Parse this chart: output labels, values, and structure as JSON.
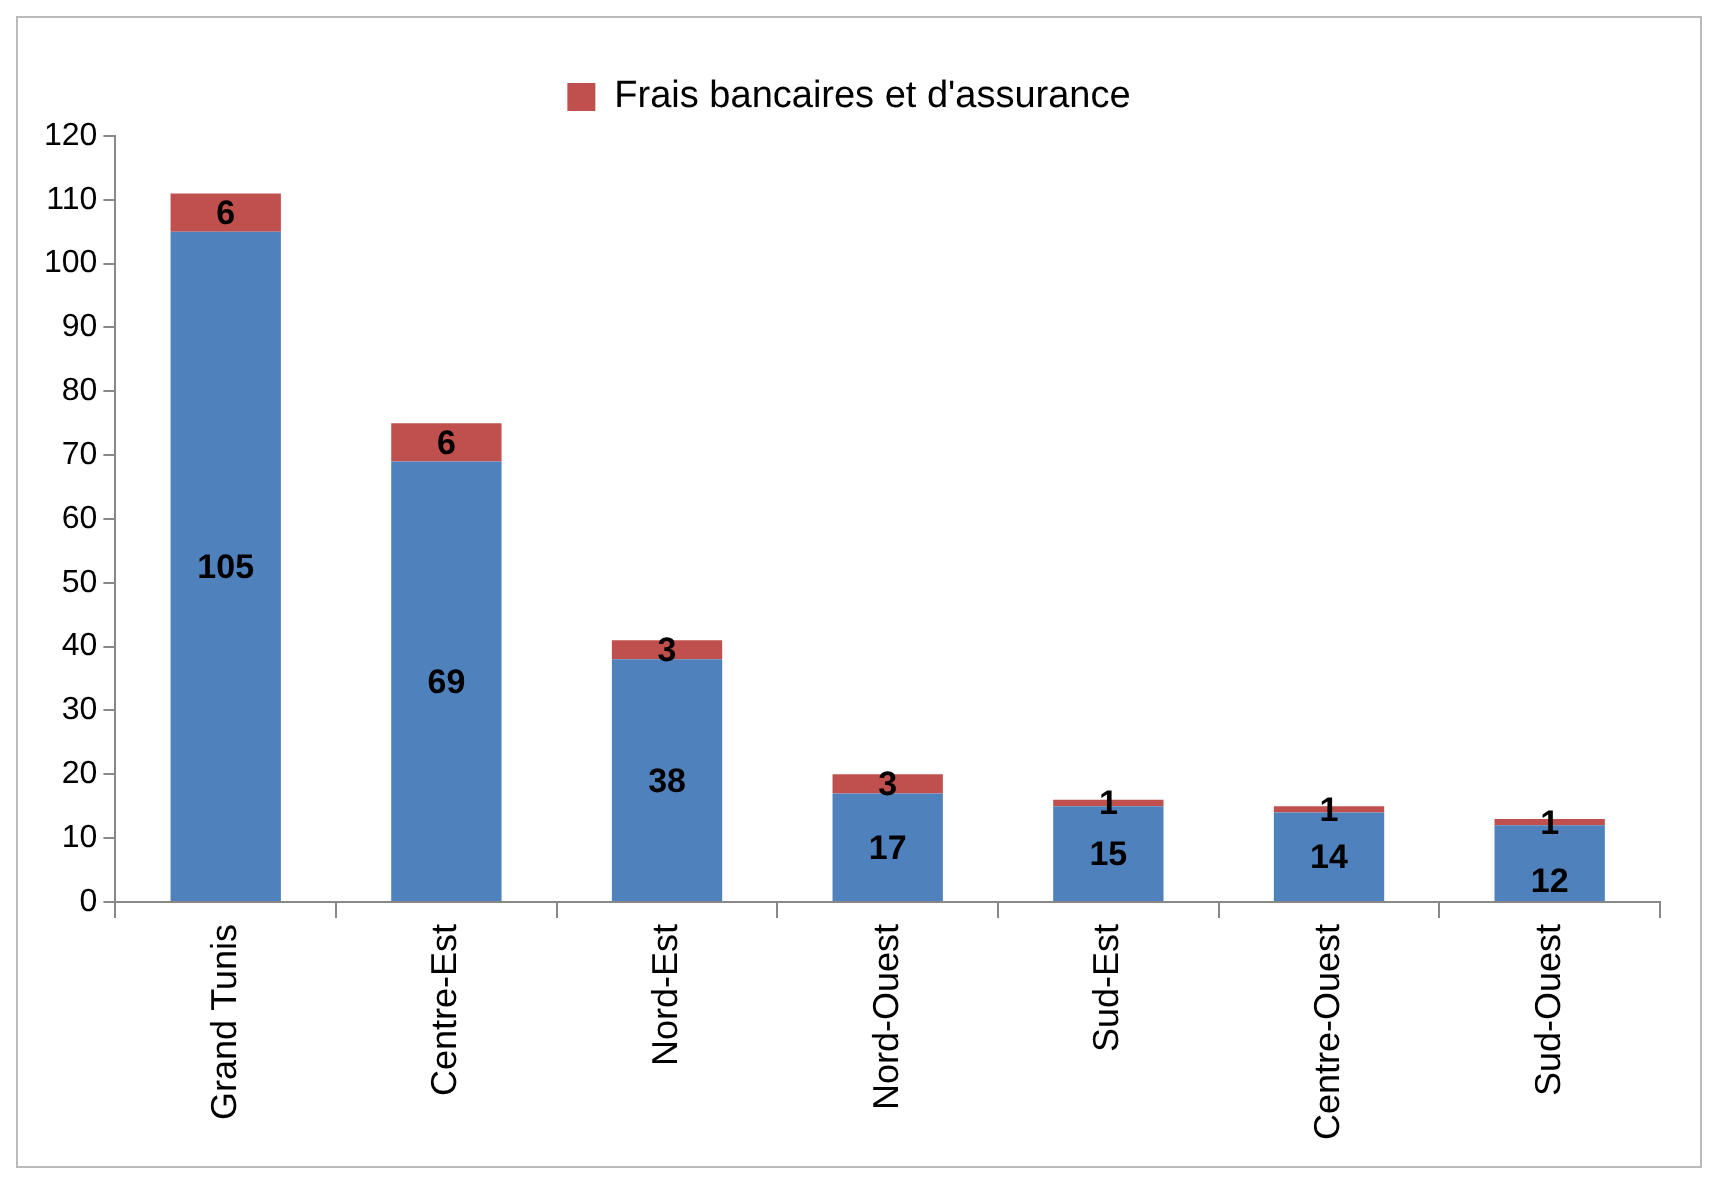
{
  "chart_data": {
    "type": "bar",
    "stacked": true,
    "categories": [
      "Grand Tunis",
      "Centre-Est",
      "Nord-Est",
      "Nord-Ouest",
      "Sud-Est",
      "Centre-Ouest",
      "Sud-Ouest"
    ],
    "series": [
      {
        "color": "#4f81bd",
        "values": [
          105,
          69,
          38,
          17,
          15,
          14,
          12
        ]
      },
      {
        "name": "Frais bancaires et d'assurance",
        "color": "#c0504d",
        "values": [
          6,
          6,
          3,
          3,
          1,
          1,
          1
        ]
      }
    ],
    "ylim": [
      0,
      120
    ],
    "yticks": [
      0,
      10,
      20,
      30,
      40,
      50,
      60,
      70,
      80,
      90,
      100,
      110,
      120
    ],
    "grid": false,
    "legend": "top",
    "data_labels": true
  }
}
